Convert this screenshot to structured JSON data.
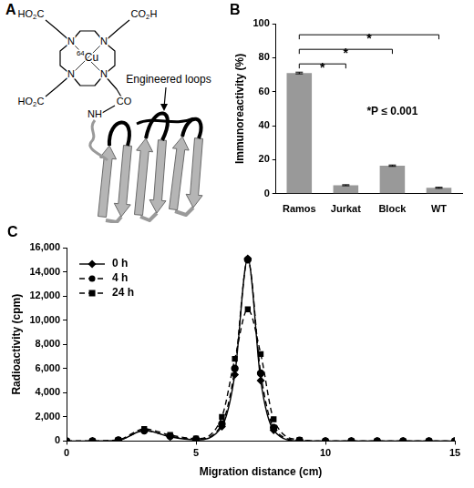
{
  "diagram": {
    "panel": "A",
    "chelator_groups": [
      "HO2C",
      "CO2H",
      "HO2C"
    ],
    "ring_atoms": [
      "N",
      "N",
      "N",
      "N"
    ],
    "metal": "64Cu",
    "linker": [
      "CO",
      "NH"
    ],
    "callout": "Engineered loops"
  },
  "chart_data": [
    {
      "panel": "B",
      "type": "bar",
      "categories": [
        "Ramos",
        "Jurkat",
        "Block",
        "WT"
      ],
      "values": [
        71,
        5,
        16.5,
        3.5
      ],
      "errors": [
        0.5,
        0.3,
        0.4,
        0.3
      ],
      "color": "#999999",
      "y_label": "Immunoreactivity (%)",
      "ylim": [
        0,
        100
      ],
      "yticks": [
        0,
        20,
        40,
        60,
        80,
        100
      ],
      "grid": false,
      "annotations": [
        "*P ≤ 0.001"
      ],
      "significance": [
        {
          "from": "Ramos",
          "to": "Jurkat",
          "label": "*"
        },
        {
          "from": "Ramos",
          "to": "Block",
          "label": "*"
        },
        {
          "from": "Ramos",
          "to": "WT",
          "label": "*"
        }
      ]
    },
    {
      "panel": "C",
      "type": "line",
      "x_label": "Migration distance (cm)",
      "y_label": "Radioactivity (cpm)",
      "xlim": [
        0,
        15
      ],
      "xticks": [
        0,
        5,
        10,
        15
      ],
      "ylim": [
        0,
        16000
      ],
      "yticks": [
        0,
        {
          "value": 2000,
          "label": "2,000"
        },
        {
          "value": 4000,
          "label": "4,000"
        },
        {
          "value": 6000,
          "label": "6,000"
        },
        {
          "value": 8000,
          "label": "8,000"
        },
        {
          "value": 10000,
          "label": "10,000"
        },
        {
          "value": 12000,
          "label": "12,000"
        },
        {
          "value": 14000,
          "label": "14,000"
        },
        {
          "value": 16000,
          "label": "16,000"
        }
      ],
      "grid": false,
      "legend": "upper left",
      "x": [
        0,
        1,
        2,
        3,
        4,
        5,
        6,
        6.5,
        7,
        7.5,
        8,
        9,
        10,
        11,
        12,
        13,
        14,
        15
      ],
      "series": [
        {
          "name": "0 h",
          "color": "#000000",
          "marker": "diamond",
          "line_style": "solid",
          "values": [
            0,
            0,
            50,
            900,
            350,
            100,
            1200,
            5500,
            15100,
            5000,
            900,
            0,
            0,
            0,
            0,
            0,
            0,
            0
          ]
        },
        {
          "name": "4 h",
          "color": "#000000",
          "marker": "circle",
          "line_style": "dashed",
          "values": [
            0,
            0,
            80,
            850,
            400,
            150,
            1400,
            6000,
            15000,
            5600,
            1100,
            50,
            0,
            0,
            0,
            0,
            0,
            0
          ]
        },
        {
          "name": "24 h",
          "color": "#000000",
          "marker": "square",
          "line_style": "dashed",
          "values": [
            0,
            0,
            100,
            1000,
            500,
            200,
            2000,
            6800,
            10900,
            7200,
            1800,
            100,
            0,
            0,
            0,
            0,
            0,
            0
          ]
        }
      ]
    }
  ]
}
